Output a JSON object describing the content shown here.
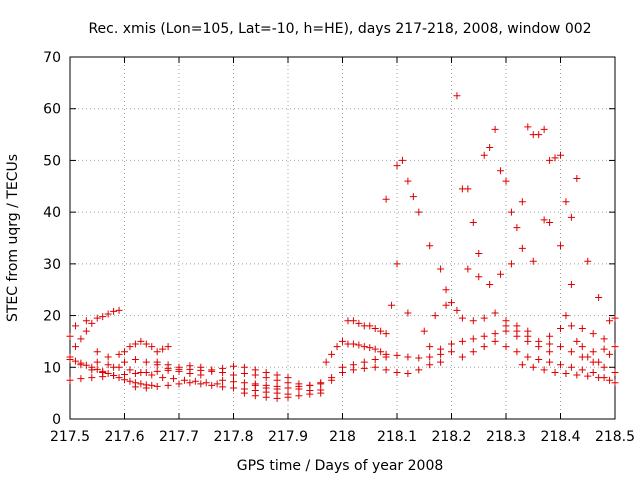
{
  "chart_data": {
    "type": "scatter",
    "title": "Rec. xmis (Lon=105, Lat=-10, h=HE), days 217-218, 2008, window 002",
    "xlabel": "GPS time / Days of year 2008",
    "ylabel": "STEC from uqrg / TECUs",
    "xlim": [
      217.5,
      218.5
    ],
    "ylim": [
      0,
      70
    ],
    "xticks": [
      "217.5",
      "217.6",
      "217.7",
      "217.8",
      "217.9",
      "218",
      "218.1",
      "218.2",
      "218.3",
      "218.4",
      "218.5"
    ],
    "yticks": [
      "0",
      "10",
      "20",
      "30",
      "40",
      "50",
      "60",
      "70"
    ],
    "grid": true,
    "marker": "plus",
    "color": "#dd0000",
    "points": [
      [
        217.5,
        11.5
      ],
      [
        217.51,
        11.2
      ],
      [
        217.52,
        10.8
      ],
      [
        217.53,
        10.4
      ],
      [
        217.54,
        10.0
      ],
      [
        217.55,
        9.6
      ],
      [
        217.56,
        9.2
      ],
      [
        217.57,
        8.8
      ],
      [
        217.58,
        8.4
      ],
      [
        217.59,
        8.0
      ],
      [
        217.6,
        7.6
      ],
      [
        217.61,
        7.3
      ],
      [
        217.62,
        7.0
      ],
      [
        217.63,
        6.8
      ],
      [
        217.64,
        6.6
      ],
      [
        217.65,
        6.5
      ],
      [
        217.5,
        7.5
      ],
      [
        217.52,
        7.8
      ],
      [
        217.54,
        8.0
      ],
      [
        217.56,
        8.2
      ],
      [
        217.58,
        8.4
      ],
      [
        217.6,
        8.6
      ],
      [
        217.62,
        8.8
      ],
      [
        217.64,
        9.0
      ],
      [
        217.66,
        9.2
      ],
      [
        217.68,
        9.4
      ],
      [
        217.7,
        9.6
      ],
      [
        217.72,
        9.6
      ],
      [
        217.74,
        9.4
      ],
      [
        217.76,
        9.2
      ],
      [
        217.78,
        9.0
      ],
      [
        217.5,
        12.0
      ],
      [
        217.51,
        14.0
      ],
      [
        217.52,
        15.5
      ],
      [
        217.53,
        17.0
      ],
      [
        217.54,
        18.5
      ],
      [
        217.55,
        19.5
      ],
      [
        217.56,
        19.8
      ],
      [
        217.57,
        20.3
      ],
      [
        217.58,
        20.8
      ],
      [
        217.59,
        21.0
      ],
      [
        217.5,
        16.0
      ],
      [
        217.51,
        18.0
      ],
      [
        217.53,
        19.0
      ],
      [
        217.55,
        13.0
      ],
      [
        217.57,
        12.0
      ],
      [
        217.59,
        12.5
      ],
      [
        217.6,
        13.0
      ],
      [
        217.61,
        14.0
      ],
      [
        217.62,
        14.5
      ],
      [
        217.63,
        15.0
      ],
      [
        217.64,
        14.5
      ],
      [
        217.65,
        14.0
      ],
      [
        217.66,
        13.0
      ],
      [
        217.67,
        13.5
      ],
      [
        217.68,
        14.0
      ],
      [
        217.52,
        10.5
      ],
      [
        217.54,
        9.5
      ],
      [
        217.56,
        9.0
      ],
      [
        217.58,
        10.0
      ],
      [
        217.6,
        11.0
      ],
      [
        217.62,
        11.5
      ],
      [
        217.64,
        11.0
      ],
      [
        217.66,
        10.5
      ],
      [
        217.68,
        9.8
      ],
      [
        217.7,
        9.2
      ],
      [
        217.72,
        8.8
      ],
      [
        217.74,
        8.5
      ],
      [
        217.55,
        11.0
      ],
      [
        217.57,
        10.5
      ],
      [
        217.59,
        10.0
      ],
      [
        217.61,
        9.5
      ],
      [
        217.63,
        9.0
      ],
      [
        217.65,
        8.5
      ],
      [
        217.67,
        8.0
      ],
      [
        217.69,
        7.8
      ],
      [
        217.71,
        7.5
      ],
      [
        217.73,
        7.3
      ],
      [
        217.75,
        7.0
      ],
      [
        217.77,
        6.8
      ],
      [
        217.62,
        6.2
      ],
      [
        217.64,
        6.0
      ],
      [
        217.66,
        6.3
      ],
      [
        217.68,
        6.5
      ],
      [
        217.7,
        6.8
      ],
      [
        217.72,
        7.0
      ],
      [
        217.74,
        6.8
      ],
      [
        217.76,
        6.5
      ],
      [
        217.78,
        6.2
      ],
      [
        217.8,
        6.0
      ],
      [
        217.82,
        5.8
      ],
      [
        217.84,
        5.5
      ],
      [
        217.86,
        5.2
      ],
      [
        217.88,
        5.0
      ],
      [
        217.9,
        4.8
      ],
      [
        217.66,
        11.0
      ],
      [
        217.68,
        10.5
      ],
      [
        217.7,
        10.0
      ],
      [
        217.72,
        10.3
      ],
      [
        217.74,
        10.0
      ],
      [
        217.76,
        9.5
      ],
      [
        217.78,
        9.8
      ],
      [
        217.8,
        10.2
      ],
      [
        217.82,
        10.0
      ],
      [
        217.84,
        9.5
      ],
      [
        217.86,
        9.0
      ],
      [
        217.88,
        8.5
      ],
      [
        217.9,
        8.0
      ],
      [
        217.78,
        7.5
      ],
      [
        217.8,
        7.2
      ],
      [
        217.82,
        7.0
      ],
      [
        217.84,
        6.8
      ],
      [
        217.86,
        6.5
      ],
      [
        217.88,
        6.3
      ],
      [
        217.9,
        6.0
      ],
      [
        217.92,
        5.8
      ],
      [
        217.94,
        5.5
      ],
      [
        217.96,
        5.6
      ],
      [
        217.8,
        8.5
      ],
      [
        217.82,
        8.8
      ],
      [
        217.84,
        8.5
      ],
      [
        217.86,
        8.0
      ],
      [
        217.88,
        7.5
      ],
      [
        217.9,
        7.0
      ],
      [
        217.92,
        6.8
      ],
      [
        217.94,
        6.5
      ],
      [
        217.96,
        6.8
      ],
      [
        217.98,
        7.5
      ],
      [
        217.82,
        5.0
      ],
      [
        217.84,
        4.5
      ],
      [
        217.86,
        4.2
      ],
      [
        217.88,
        4.0
      ],
      [
        217.9,
        4.2
      ],
      [
        217.92,
        4.5
      ],
      [
        217.94,
        4.8
      ],
      [
        217.96,
        5.0
      ],
      [
        217.84,
        6.5
      ],
      [
        217.86,
        6.0
      ],
      [
        217.88,
        5.8
      ],
      [
        217.9,
        6.0
      ],
      [
        217.92,
        6.3
      ],
      [
        217.94,
        6.5
      ],
      [
        217.96,
        7.0
      ],
      [
        217.98,
        8.0
      ],
      [
        218.0,
        9.0
      ],
      [
        217.97,
        11.0
      ],
      [
        217.98,
        12.5
      ],
      [
        217.99,
        14.0
      ],
      [
        218.0,
        15.0
      ],
      [
        218.01,
        19.0
      ],
      [
        218.02,
        19.0
      ],
      [
        218.03,
        18.5
      ],
      [
        218.04,
        18.0
      ],
      [
        218.05,
        18.0
      ],
      [
        218.06,
        17.5
      ],
      [
        218.07,
        17.0
      ],
      [
        218.08,
        16.5
      ],
      [
        218.01,
        14.5
      ],
      [
        218.02,
        14.5
      ],
      [
        218.03,
        14.3
      ],
      [
        218.04,
        14.0
      ],
      [
        218.05,
        13.8
      ],
      [
        218.06,
        13.5
      ],
      [
        218.07,
        13.0
      ],
      [
        218.08,
        12.5
      ],
      [
        218.0,
        10.0
      ],
      [
        218.02,
        10.5
      ],
      [
        218.04,
        11.0
      ],
      [
        218.06,
        11.5
      ],
      [
        218.08,
        12.0
      ],
      [
        218.1,
        12.3
      ],
      [
        218.12,
        12.0
      ],
      [
        218.14,
        11.8
      ],
      [
        218.16,
        12.0
      ],
      [
        218.18,
        12.5
      ],
      [
        218.2,
        13.0
      ],
      [
        218.02,
        9.5
      ],
      [
        218.04,
        9.8
      ],
      [
        218.06,
        10.0
      ],
      [
        218.08,
        9.5
      ],
      [
        218.1,
        9.0
      ],
      [
        218.12,
        8.8
      ],
      [
        218.14,
        9.5
      ],
      [
        218.16,
        10.5
      ],
      [
        218.18,
        11.0
      ],
      [
        218.08,
        42.5
      ],
      [
        218.1,
        49.0
      ],
      [
        218.11,
        50.0
      ],
      [
        218.12,
        46.0
      ],
      [
        218.13,
        43.0
      ],
      [
        218.14,
        40.0
      ],
      [
        218.16,
        33.5
      ],
      [
        218.18,
        29.0
      ],
      [
        218.19,
        25.0
      ],
      [
        218.1,
        30.0
      ],
      [
        218.12,
        20.5
      ],
      [
        218.09,
        22.0
      ],
      [
        218.15,
        17.0
      ],
      [
        218.17,
        20.0
      ],
      [
        218.19,
        22.0
      ],
      [
        218.2,
        22.5
      ],
      [
        218.21,
        21.0
      ],
      [
        218.22,
        19.5
      ],
      [
        218.24,
        19.0
      ],
      [
        218.26,
        19.5
      ],
      [
        218.28,
        20.5
      ],
      [
        218.3,
        19.0
      ],
      [
        218.32,
        18.0
      ],
      [
        218.34,
        17.0
      ],
      [
        218.16,
        14.0
      ],
      [
        218.18,
        13.5
      ],
      [
        218.2,
        14.5
      ],
      [
        218.22,
        15.0
      ],
      [
        218.24,
        15.5
      ],
      [
        218.26,
        16.0
      ],
      [
        218.28,
        16.5
      ],
      [
        218.3,
        17.0
      ],
      [
        218.32,
        16.0
      ],
      [
        218.34,
        15.0
      ],
      [
        218.36,
        14.0
      ],
      [
        218.38,
        13.0
      ],
      [
        218.21,
        62.5
      ],
      [
        218.22,
        44.5
      ],
      [
        218.23,
        44.5
      ],
      [
        218.24,
        38.0
      ],
      [
        218.25,
        32.0
      ],
      [
        218.26,
        51.0
      ],
      [
        218.27,
        52.5
      ],
      [
        218.28,
        56.0
      ],
      [
        218.29,
        48.0
      ],
      [
        218.3,
        46.0
      ],
      [
        218.31,
        40.0
      ],
      [
        218.32,
        37.0
      ],
      [
        218.33,
        42.0
      ],
      [
        218.34,
        56.5
      ],
      [
        218.35,
        55.0
      ],
      [
        218.36,
        55.0
      ],
      [
        218.37,
        56.0
      ],
      [
        218.38,
        50.0
      ],
      [
        218.39,
        50.5
      ],
      [
        218.4,
        51.0
      ],
      [
        218.41,
        42.0
      ],
      [
        218.42,
        39.0
      ],
      [
        218.43,
        46.5
      ],
      [
        218.23,
        29.0
      ],
      [
        218.25,
        27.5
      ],
      [
        218.27,
        26.0
      ],
      [
        218.29,
        28.0
      ],
      [
        218.31,
        30.0
      ],
      [
        218.33,
        33.0
      ],
      [
        218.35,
        30.5
      ],
      [
        218.37,
        38.5
      ],
      [
        218.38,
        38.0
      ],
      [
        218.4,
        33.5
      ],
      [
        218.42,
        26.0
      ],
      [
        218.45,
        30.5
      ],
      [
        218.47,
        23.5
      ],
      [
        218.22,
        12.0
      ],
      [
        218.24,
        13.0
      ],
      [
        218.26,
        14.0
      ],
      [
        218.28,
        15.0
      ],
      [
        218.3,
        14.0
      ],
      [
        218.32,
        13.0
      ],
      [
        218.34,
        12.0
      ],
      [
        218.36,
        11.5
      ],
      [
        218.38,
        11.0
      ],
      [
        218.4,
        10.5
      ],
      [
        218.42,
        10.0
      ],
      [
        218.44,
        9.5
      ],
      [
        218.46,
        9.0
      ],
      [
        218.48,
        8.0
      ],
      [
        218.5,
        7.0
      ],
      [
        218.3,
        18.0
      ],
      [
        218.32,
        17.0
      ],
      [
        218.34,
        16.0
      ],
      [
        218.36,
        15.0
      ],
      [
        218.38,
        14.5
      ],
      [
        218.4,
        14.0
      ],
      [
        218.42,
        13.0
      ],
      [
        218.44,
        12.0
      ],
      [
        218.46,
        11.0
      ],
      [
        218.48,
        10.0
      ],
      [
        218.5,
        9.0
      ],
      [
        218.33,
        10.5
      ],
      [
        218.35,
        10.0
      ],
      [
        218.37,
        9.5
      ],
      [
        218.39,
        9.0
      ],
      [
        218.41,
        8.8
      ],
      [
        218.43,
        8.5
      ],
      [
        218.45,
        8.3
      ],
      [
        218.47,
        8.0
      ],
      [
        218.49,
        7.5
      ],
      [
        218.38,
        16.0
      ],
      [
        218.4,
        17.5
      ],
      [
        218.42,
        18.0
      ],
      [
        218.44,
        17.5
      ],
      [
        218.46,
        16.5
      ],
      [
        218.48,
        15.5
      ],
      [
        218.5,
        14.0
      ],
      [
        218.49,
        19.0
      ],
      [
        218.5,
        19.5
      ],
      [
        218.41,
        20.0
      ],
      [
        218.43,
        15.0
      ],
      [
        218.45,
        12.0
      ],
      [
        218.47,
        11.0
      ],
      [
        218.49,
        12.5
      ],
      [
        218.44,
        14.0
      ],
      [
        218.46,
        13.0
      ],
      [
        218.48,
        13.5
      ]
    ]
  }
}
